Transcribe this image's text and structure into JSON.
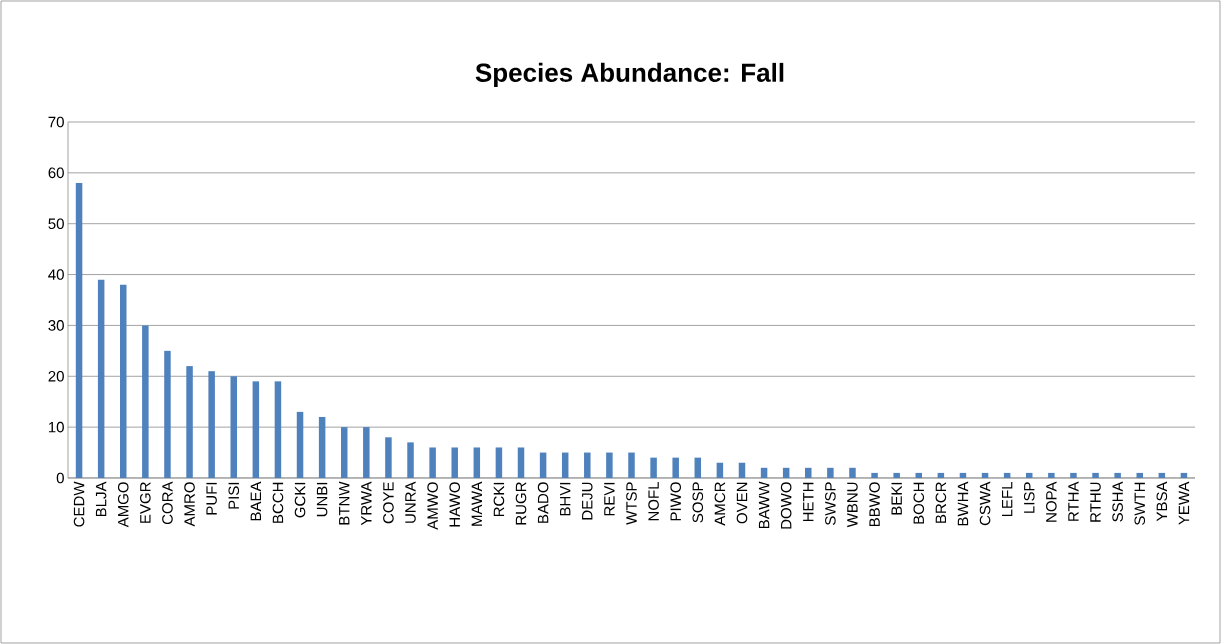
{
  "chart_data": {
    "type": "bar",
    "title": "Species Abundance: Fall",
    "categories": [
      "CEDW",
      "BLJA",
      "AMGO",
      "EVGR",
      "CORA",
      "AMRO",
      "PUFI",
      "PISI",
      "BAEA",
      "BCCH",
      "GCKI",
      "UNBI",
      "BTNW",
      "YRWA",
      "COYE",
      "UNRA",
      "AMWO",
      "HAWO",
      "MAWA",
      "RCKI",
      "RUGR",
      "BADO",
      "BHVI",
      "DEJU",
      "REVI",
      "WTSP",
      "NOFL",
      "PIWO",
      "SOSP",
      "AMCR",
      "OVEN",
      "BAWW",
      "DOWO",
      "HETH",
      "SWSP",
      "WBNU",
      "BBWO",
      "BEKI",
      "BOCH",
      "BRCR",
      "BWHA",
      "CSWA",
      "LEFL",
      "LISP",
      "NOPA",
      "RTHA",
      "RTHU",
      "SSHA",
      "SWTH",
      "YBSA",
      "YEWA"
    ],
    "values": [
      58,
      39,
      38,
      30,
      25,
      22,
      21,
      20,
      19,
      19,
      13,
      12,
      10,
      10,
      8,
      7,
      6,
      6,
      6,
      6,
      6,
      5,
      5,
      5,
      5,
      5,
      4,
      4,
      4,
      3,
      3,
      2,
      2,
      2,
      2,
      2,
      1,
      1,
      1,
      1,
      1,
      1,
      1,
      1,
      1,
      1,
      1,
      1,
      1,
      1,
      1
    ],
    "color": "#4f81bd",
    "ylim": [
      0,
      70
    ],
    "yticks": [
      0,
      10,
      20,
      30,
      40,
      50,
      60,
      70
    ],
    "grid": "y"
  }
}
